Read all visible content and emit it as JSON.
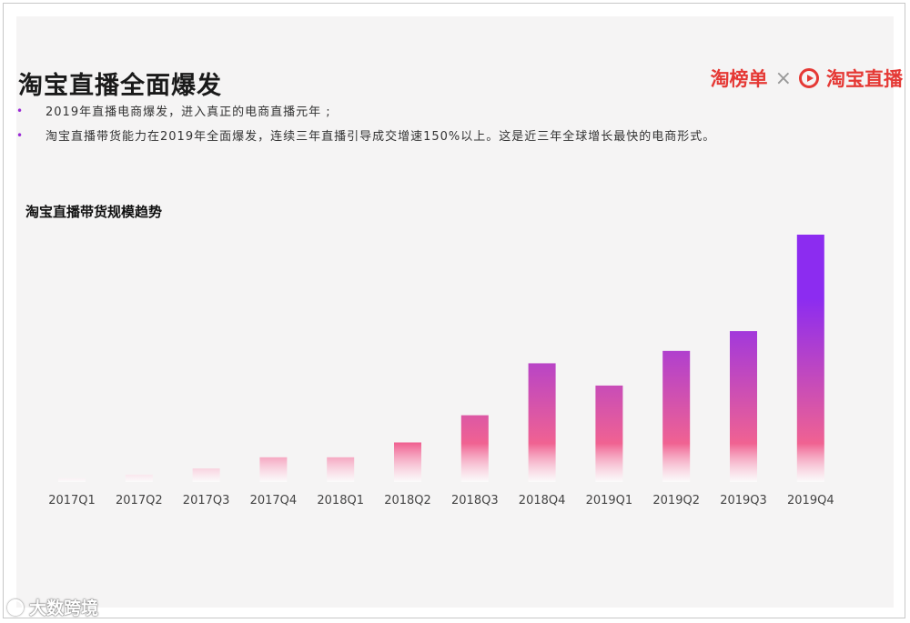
{
  "title": "淘宝直播全面爆发",
  "logo": {
    "left": "淘榜单",
    "separator": "×",
    "right": "淘宝直播"
  },
  "bullets": [
    "2019年直播电商爆发，进入真正的电商直播元年 ;",
    "淘宝直播带货能力在2019年全面爆发，连续三年直播引导成交增速150%以上。这是近三年全球增长最快的电商形式。"
  ],
  "watermark": "大数跨境",
  "colors": {
    "bar_top": "#8c2cf0",
    "bar_mid": "#f06292",
    "bar_bottom": "#ffffff",
    "bullet_dot": "#9b2bd6",
    "logo_red": "#e53935"
  },
  "chart_data": {
    "type": "bar",
    "title": "淘宝直播带货规模趋势",
    "xlabel": "",
    "ylabel": "",
    "categories": [
      "2017Q1",
      "2017Q2",
      "2017Q3",
      "2017Q4",
      "2018Q1",
      "2018Q2",
      "2018Q3",
      "2018Q4",
      "2019Q1",
      "2019Q2",
      "2019Q3",
      "2019Q4"
    ],
    "values": [
      1.5,
      3,
      5.5,
      10,
      10,
      16,
      27,
      48,
      39,
      53,
      61,
      100
    ],
    "ylim": [
      0,
      100
    ],
    "grid": false,
    "legend": "none"
  }
}
